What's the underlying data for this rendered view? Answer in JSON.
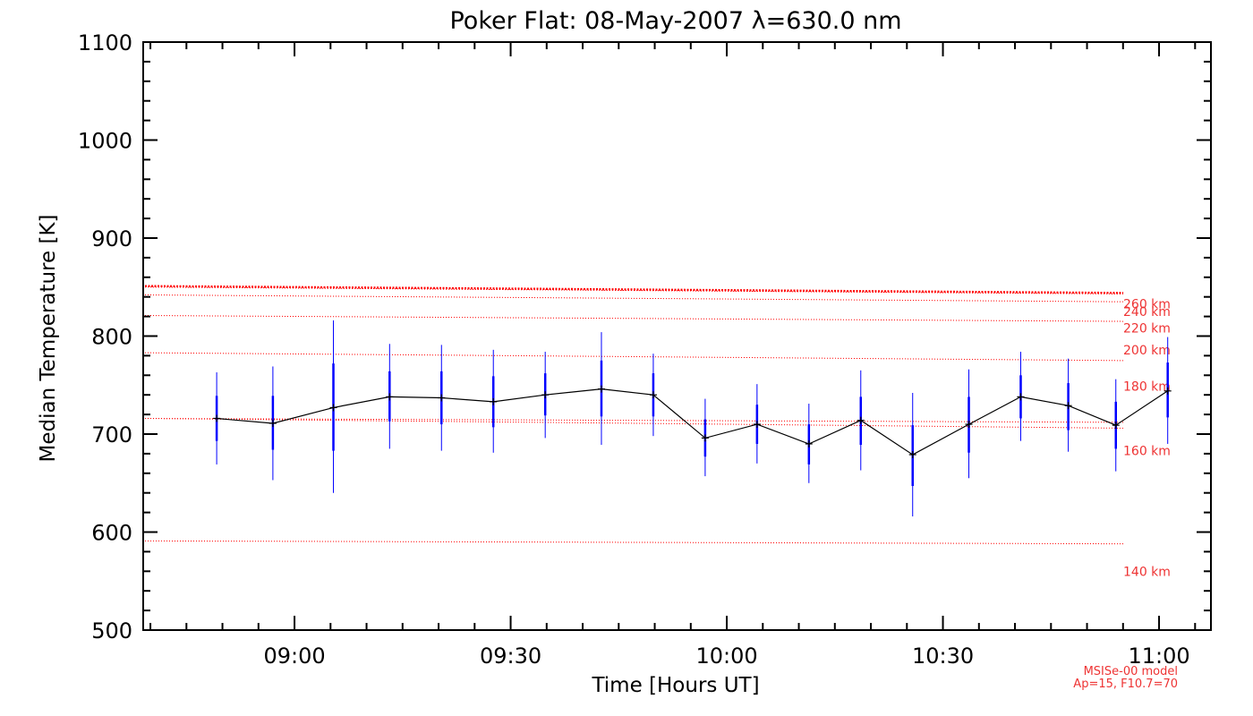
{
  "chart_data": {
    "type": "line",
    "title": "Poker Flat: 08-May-2007 λ=630.0 nm",
    "xlabel": "Time [Hours UT]",
    "ylabel": "Median Temperature [K]",
    "xlim": [
      8.65,
      11.12
    ],
    "ylim": [
      500,
      1100
    ],
    "yticks": [
      500,
      600,
      700,
      800,
      900,
      1000,
      1100
    ],
    "xticks": [
      {
        "value": 9.0,
        "label": "09:00"
      },
      {
        "value": 9.5,
        "label": "09:30"
      },
      {
        "value": 10.0,
        "label": "10:00"
      },
      {
        "value": 10.5,
        "label": "10:30"
      },
      {
        "value": 11.0,
        "label": "11:00"
      }
    ],
    "series": [
      {
        "name": "Median Temperature",
        "color": "#000000",
        "errorbar_color": "#0000ff",
        "x": [
          8.82,
          8.95,
          9.09,
          9.22,
          9.34,
          9.46,
          9.58,
          9.71,
          9.83,
          9.95,
          10.07,
          10.19,
          10.31,
          10.43,
          10.56,
          10.68,
          10.79,
          10.9,
          11.02
        ],
        "values": [
          716,
          711,
          727,
          738,
          737,
          733,
          740,
          746,
          740,
          696,
          710,
          690,
          714,
          679,
          710,
          738,
          729,
          709,
          744
        ],
        "err_inner": [
          [
            693,
            739
          ],
          [
            684,
            739
          ],
          [
            683,
            772
          ],
          [
            713,
            764
          ],
          [
            710,
            764
          ],
          [
            707,
            759
          ],
          [
            719,
            762
          ],
          [
            718,
            775
          ],
          [
            718,
            762
          ],
          [
            677,
            715
          ],
          [
            690,
            730
          ],
          [
            669,
            710
          ],
          [
            689,
            738
          ],
          [
            647,
            709
          ],
          [
            681,
            738
          ],
          [
            716,
            760
          ],
          [
            704,
            752
          ],
          [
            685,
            733
          ],
          [
            717,
            773
          ]
        ],
        "err_outer": [
          [
            669,
            763
          ],
          [
            653,
            769
          ],
          [
            640,
            816
          ],
          [
            685,
            792
          ],
          [
            683,
            791
          ],
          [
            681,
            786
          ],
          [
            696,
            784
          ],
          [
            689,
            804
          ],
          [
            698,
            782
          ],
          [
            657,
            736
          ],
          [
            670,
            751
          ],
          [
            650,
            731
          ],
          [
            663,
            765
          ],
          [
            616,
            742
          ],
          [
            655,
            766
          ],
          [
            693,
            784
          ],
          [
            682,
            777
          ],
          [
            662,
            756
          ],
          [
            690,
            799
          ]
        ]
      }
    ],
    "model_lines": {
      "color": "#ff0000",
      "label_color": "#ee3333",
      "lines": [
        {
          "label": "260 km",
          "start": 850,
          "end": 843,
          "label_value": 833
        },
        {
          "label": "240 km",
          "start": 842,
          "end": 835,
          "label_value": 825
        },
        {
          "label": "220 km",
          "start": 821,
          "end": 815,
          "label_value": 808
        },
        {
          "label": "200 km",
          "start": 783,
          "end": 775,
          "label_value": 786
        },
        {
          "label": "180 km",
          "start": 716,
          "end": 712,
          "label_value": 749
        },
        {
          "label": "160 km",
          "start": 716,
          "end": 706,
          "label_value": 683
        },
        {
          "label": "140 km",
          "start": 591,
          "end": 588,
          "label_value": 560
        }
      ],
      "thick_line": {
        "start": 851,
        "end": 844
      }
    },
    "footnote": [
      "MSISe-00 model",
      "Ap=15, F10.7=70"
    ]
  }
}
